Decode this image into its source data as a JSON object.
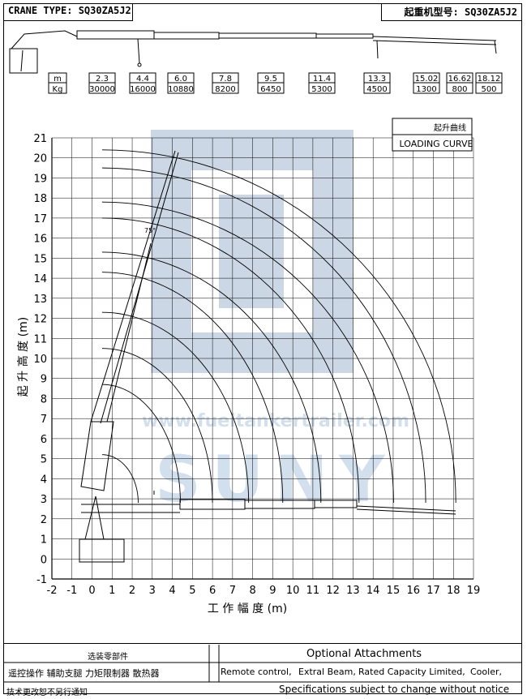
{
  "header": {
    "left": "CRANE TYPE: SQ30ZA5J2",
    "right": "起重机型号: SQ30ZA5J2"
  },
  "capacity_table": {
    "unit_m": "m",
    "unit_kg": "Kg",
    "columns": [
      {
        "m": "2.3",
        "kg": "30000"
      },
      {
        "m": "4.4",
        "kg": "16000"
      },
      {
        "m": "6.0",
        "kg": "10880"
      },
      {
        "m": "7.8",
        "kg": "8200"
      },
      {
        "m": "9.5",
        "kg": "6450"
      },
      {
        "m": "11.4",
        "kg": "5300"
      },
      {
        "m": "13.3",
        "kg": "4500"
      },
      {
        "m": "15.02",
        "kg": "1300"
      },
      {
        "m": "16.62",
        "kg": "800"
      },
      {
        "m": "18.12",
        "kg": "500"
      }
    ]
  },
  "chart_data": {
    "type": "line",
    "title": "起升曲线",
    "subtitle": "LOADING CURVE",
    "xlabel": "工 作 幅 度 (m)",
    "ylabel": "起 升 高 度 (m)",
    "xlim": [
      -2,
      19
    ],
    "ylim": [
      -1,
      21
    ],
    "xticks": [
      "-2",
      "-1",
      "0",
      "1",
      "2",
      "3",
      "4",
      "5",
      "6",
      "7",
      "8",
      "9",
      "10",
      "11",
      "12",
      "13",
      "14",
      "15",
      "16",
      "17",
      "18",
      "19"
    ],
    "yticks": [
      "-1",
      "0",
      "1",
      "2",
      "3",
      "4",
      "5",
      "6",
      "7",
      "8",
      "9",
      "10",
      "11",
      "12",
      "13",
      "14",
      "15",
      "16",
      "17",
      "18",
      "19",
      "20",
      "21"
    ],
    "grid": true,
    "pivot": [
      0.5,
      2.8
    ],
    "arcs": [
      {
        "radius_x": 2.3,
        "tip_y": 5.2
      },
      {
        "radius_x": 4.4,
        "tip_y": 8.7
      },
      {
        "radius_x": 6.0,
        "tip_y": 10.5
      },
      {
        "radius_x": 7.8,
        "tip_y": 12.3
      },
      {
        "radius_x": 9.5,
        "tip_y": 14.3
      },
      {
        "radius_x": 11.4,
        "tip_y": 15.3
      },
      {
        "radius_x": 13.3,
        "tip_y": 17.0
      },
      {
        "radius_x": 15.02,
        "tip_y": 17.8
      },
      {
        "radius_x": 16.62,
        "tip_y": 19.5
      },
      {
        "radius_x": 18.12,
        "tip_y": 20.4
      }
    ],
    "boom_angle_label": "75°",
    "watermark_url": "www.fueltankertrailer.com",
    "watermark_brand": "SUNY"
  },
  "footer": {
    "options_cn_title": "选装零部件",
    "options_cn_items": "遥控操作  辅助支腿  力矩限制器  散热器",
    "options_en_title": "Optional Attachments",
    "options_en_items": [
      "Remote control,",
      "Extral Beam,",
      "Rated Capacity Limited,",
      "Cooler,"
    ],
    "note_cn": "技术更改恕不另行通知",
    "note_en": "Specifications subject to change without notice"
  }
}
